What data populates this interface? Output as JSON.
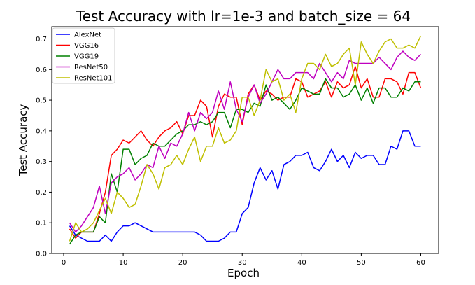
{
  "chart_data": {
    "type": "line",
    "title": "Test Accuracy with lr=1e-3 and batch_size = 64",
    "xlabel": "Epoch",
    "ylabel": "Test Accuracy",
    "xlim": [
      -2,
      63
    ],
    "ylim": [
      0,
      0.74
    ],
    "xticks": [
      0,
      10,
      20,
      30,
      40,
      50,
      60
    ],
    "yticks": [
      0.0,
      0.1,
      0.2,
      0.3,
      0.4,
      0.5,
      0.6,
      0.7
    ],
    "xtick_labels": [
      "0",
      "10",
      "20",
      "30",
      "40",
      "50",
      "60"
    ],
    "ytick_labels": [
      "0.0",
      "0.1",
      "0.2",
      "0.3",
      "0.4",
      "0.5",
      "0.6",
      "0.7"
    ],
    "grid": false,
    "legend_position": "top-left",
    "x": [
      1,
      2,
      3,
      4,
      5,
      6,
      7,
      8,
      9,
      10,
      11,
      12,
      13,
      14,
      15,
      16,
      17,
      18,
      19,
      20,
      21,
      22,
      23,
      24,
      25,
      26,
      27,
      28,
      29,
      30,
      31,
      32,
      33,
      34,
      35,
      36,
      37,
      38,
      39,
      40,
      41,
      42,
      43,
      44,
      45,
      46,
      47,
      48,
      49,
      50,
      51,
      52,
      53,
      54,
      55,
      56,
      57,
      58,
      59,
      60
    ],
    "series": [
      {
        "name": "AlexNet",
        "color": "#0000ff",
        "values": [
          0.09,
          0.06,
          0.05,
          0.04,
          0.04,
          0.04,
          0.06,
          0.04,
          0.07,
          0.09,
          0.09,
          0.1,
          0.09,
          0.08,
          0.07,
          0.07,
          0.07,
          0.07,
          0.07,
          0.07,
          0.07,
          0.07,
          0.06,
          0.04,
          0.04,
          0.04,
          0.05,
          0.07,
          0.07,
          0.13,
          0.15,
          0.23,
          0.28,
          0.24,
          0.27,
          0.21,
          0.29,
          0.3,
          0.32,
          0.32,
          0.33,
          0.28,
          0.27,
          0.3,
          0.34,
          0.3,
          0.32,
          0.28,
          0.33,
          0.31,
          0.32,
          0.32,
          0.29,
          0.29,
          0.35,
          0.34,
          0.4,
          0.4,
          0.35,
          0.35
        ]
      },
      {
        "name": "VGG16",
        "color": "#ff0000",
        "values": [
          0.08,
          0.05,
          0.07,
          0.07,
          0.07,
          0.13,
          0.2,
          0.32,
          0.34,
          0.37,
          0.36,
          0.38,
          0.4,
          0.37,
          0.35,
          0.38,
          0.4,
          0.41,
          0.43,
          0.39,
          0.45,
          0.45,
          0.5,
          0.48,
          0.38,
          0.48,
          0.52,
          0.51,
          0.51,
          0.42,
          0.52,
          0.55,
          0.5,
          0.53,
          0.52,
          0.5,
          0.51,
          0.51,
          0.57,
          0.56,
          0.51,
          0.52,
          0.53,
          0.56,
          0.51,
          0.56,
          0.54,
          0.55,
          0.61,
          0.54,
          0.57,
          0.51,
          0.51,
          0.57,
          0.57,
          0.56,
          0.52,
          0.59,
          0.59,
          0.54
        ]
      },
      {
        "name": "VGG19",
        "color": "#008000",
        "values": [
          0.03,
          0.06,
          0.07,
          0.07,
          0.07,
          0.12,
          0.1,
          0.26,
          0.2,
          0.34,
          0.34,
          0.29,
          0.31,
          0.32,
          0.36,
          0.35,
          0.35,
          0.37,
          0.39,
          0.4,
          0.42,
          0.42,
          0.43,
          0.42,
          0.43,
          0.46,
          0.46,
          0.41,
          0.47,
          0.47,
          0.46,
          0.49,
          0.48,
          0.55,
          0.5,
          0.51,
          0.49,
          0.47,
          0.5,
          0.54,
          0.53,
          0.52,
          0.52,
          0.57,
          0.54,
          0.54,
          0.51,
          0.52,
          0.55,
          0.5,
          0.54,
          0.49,
          0.54,
          0.54,
          0.51,
          0.51,
          0.54,
          0.53,
          0.56,
          0.56
        ]
      },
      {
        "name": "ResNet50",
        "color": "#bf00bf",
        "values": [
          0.1,
          0.07,
          0.09,
          0.12,
          0.15,
          0.22,
          0.13,
          0.23,
          0.25,
          0.26,
          0.28,
          0.24,
          0.26,
          0.29,
          0.28,
          0.35,
          0.31,
          0.36,
          0.35,
          0.39,
          0.46,
          0.4,
          0.46,
          0.44,
          0.46,
          0.53,
          0.47,
          0.56,
          0.47,
          0.43,
          0.51,
          0.55,
          0.49,
          0.52,
          0.56,
          0.6,
          0.57,
          0.57,
          0.59,
          0.59,
          0.59,
          0.57,
          0.62,
          0.59,
          0.56,
          0.59,
          0.57,
          0.63,
          0.62,
          0.62,
          0.62,
          0.62,
          0.64,
          0.62,
          0.6,
          0.64,
          0.66,
          0.64,
          0.63,
          0.65
        ]
      },
      {
        "name": "ResNet101",
        "color": "#bfbf00",
        "values": [
          0.04,
          0.1,
          0.07,
          0.08,
          0.1,
          0.14,
          0.18,
          0.13,
          0.2,
          0.18,
          0.15,
          0.16,
          0.22,
          0.29,
          0.26,
          0.21,
          0.28,
          0.29,
          0.32,
          0.29,
          0.34,
          0.38,
          0.3,
          0.35,
          0.35,
          0.41,
          0.36,
          0.37,
          0.4,
          0.51,
          0.51,
          0.45,
          0.5,
          0.6,
          0.56,
          0.57,
          0.5,
          0.52,
          0.46,
          0.57,
          0.62,
          0.62,
          0.6,
          0.65,
          0.61,
          0.62,
          0.65,
          0.67,
          0.55,
          0.69,
          0.65,
          0.62,
          0.66,
          0.69,
          0.7,
          0.67,
          0.67,
          0.68,
          0.67,
          0.71
        ]
      }
    ]
  }
}
